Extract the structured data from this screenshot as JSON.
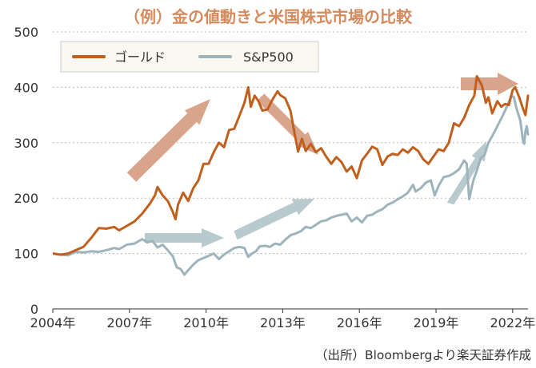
{
  "colors": {
    "gold": "#C0601E",
    "sp500": "#9DB4BC",
    "arrow_orange": "#D9A48C",
    "arrow_blue": "#B9CACE",
    "title": "#D58A5E",
    "axis": "#333333",
    "grid": "#BBBBBB",
    "legend_bg": "#FBF8F2"
  },
  "chart_data": {
    "type": "line",
    "title": "（例）金の値動きと米国株式市場の比較",
    "xlabel": "",
    "ylabel": "",
    "xlim": [
      2004.0,
      2022.6
    ],
    "ylim": [
      0,
      500
    ],
    "x_ticks": [
      2004,
      2007,
      2010,
      2013,
      2016,
      2019,
      2022
    ],
    "x_tick_labels": [
      "2004年",
      "2007年",
      "2010年",
      "2013年",
      "2016年",
      "2019年",
      "2022年"
    ],
    "y_ticks": [
      0,
      100,
      200,
      300,
      400,
      500
    ],
    "grid": true,
    "legend_position": "top-left",
    "source_note": "（出所）Bloombergより楽天証券作成",
    "series": [
      {
        "name": "ゴールド",
        "color": "#C0601E",
        "points": [
          [
            2004.0,
            100
          ],
          [
            2004.3,
            98
          ],
          [
            2004.6,
            100
          ],
          [
            2004.9,
            106
          ],
          [
            2005.2,
            112
          ],
          [
            2005.5,
            128
          ],
          [
            2005.8,
            146
          ],
          [
            2006.1,
            145
          ],
          [
            2006.4,
            148
          ],
          [
            2006.6,
            142
          ],
          [
            2006.9,
            150
          ],
          [
            2007.2,
            158
          ],
          [
            2007.5,
            172
          ],
          [
            2007.8,
            190
          ],
          [
            2008.0,
            205
          ],
          [
            2008.1,
            220
          ],
          [
            2008.3,
            205
          ],
          [
            2008.5,
            195
          ],
          [
            2008.7,
            175
          ],
          [
            2008.8,
            162
          ],
          [
            2008.9,
            188
          ],
          [
            2009.1,
            210
          ],
          [
            2009.3,
            195
          ],
          [
            2009.5,
            218
          ],
          [
            2009.7,
            232
          ],
          [
            2009.9,
            262
          ],
          [
            2010.1,
            262
          ],
          [
            2010.3,
            283
          ],
          [
            2010.5,
            300
          ],
          [
            2010.7,
            292
          ],
          [
            2010.9,
            323
          ],
          [
            2011.1,
            325
          ],
          [
            2011.3,
            348
          ],
          [
            2011.5,
            372
          ],
          [
            2011.65,
            400
          ],
          [
            2011.75,
            365
          ],
          [
            2011.9,
            385
          ],
          [
            2012.05,
            375
          ],
          [
            2012.2,
            358
          ],
          [
            2012.4,
            360
          ],
          [
            2012.6,
            378
          ],
          [
            2012.8,
            393
          ],
          [
            2012.9,
            386
          ],
          [
            2013.1,
            380
          ],
          [
            2013.3,
            358
          ],
          [
            2013.45,
            320
          ],
          [
            2013.6,
            284
          ],
          [
            2013.75,
            307
          ],
          [
            2013.9,
            285
          ],
          [
            2014.1,
            298
          ],
          [
            2014.3,
            283
          ],
          [
            2014.5,
            290
          ],
          [
            2014.7,
            275
          ],
          [
            2014.9,
            262
          ],
          [
            2015.1,
            274
          ],
          [
            2015.3,
            265
          ],
          [
            2015.5,
            248
          ],
          [
            2015.7,
            257
          ],
          [
            2015.9,
            236
          ],
          [
            2016.1,
            268
          ],
          [
            2016.3,
            280
          ],
          [
            2016.5,
            293
          ],
          [
            2016.7,
            288
          ],
          [
            2016.9,
            260
          ],
          [
            2017.1,
            275
          ],
          [
            2017.3,
            280
          ],
          [
            2017.5,
            278
          ],
          [
            2017.7,
            288
          ],
          [
            2017.9,
            282
          ],
          [
            2018.1,
            292
          ],
          [
            2018.3,
            285
          ],
          [
            2018.5,
            270
          ],
          [
            2018.7,
            262
          ],
          [
            2018.9,
            275
          ],
          [
            2019.1,
            288
          ],
          [
            2019.3,
            285
          ],
          [
            2019.5,
            300
          ],
          [
            2019.7,
            335
          ],
          [
            2019.9,
            330
          ],
          [
            2020.1,
            345
          ],
          [
            2020.3,
            368
          ],
          [
            2020.5,
            385
          ],
          [
            2020.6,
            420
          ],
          [
            2020.8,
            403
          ],
          [
            2020.95,
            372
          ],
          [
            2021.05,
            382
          ],
          [
            2021.2,
            353
          ],
          [
            2021.4,
            375
          ],
          [
            2021.55,
            365
          ],
          [
            2021.7,
            370
          ],
          [
            2021.85,
            368
          ],
          [
            2022.0,
            395
          ],
          [
            2022.1,
            400
          ],
          [
            2022.25,
            383
          ],
          [
            2022.4,
            362
          ],
          [
            2022.5,
            350
          ],
          [
            2022.6,
            385
          ]
        ]
      },
      {
        "name": "S&P500",
        "color": "#9DB4BC",
        "points": [
          [
            2004.0,
            100
          ],
          [
            2004.3,
            98
          ],
          [
            2004.6,
            97
          ],
          [
            2004.9,
            103
          ],
          [
            2005.2,
            102
          ],
          [
            2005.5,
            104
          ],
          [
            2005.8,
            103
          ],
          [
            2006.1,
            106
          ],
          [
            2006.4,
            110
          ],
          [
            2006.6,
            108
          ],
          [
            2006.9,
            116
          ],
          [
            2007.2,
            118
          ],
          [
            2007.5,
            126
          ],
          [
            2007.7,
            120
          ],
          [
            2007.9,
            123
          ],
          [
            2008.1,
            111
          ],
          [
            2008.3,
            116
          ],
          [
            2008.5,
            106
          ],
          [
            2008.7,
            95
          ],
          [
            2008.85,
            75
          ],
          [
            2009.0,
            72
          ],
          [
            2009.15,
            62
          ],
          [
            2009.3,
            70
          ],
          [
            2009.5,
            80
          ],
          [
            2009.7,
            88
          ],
          [
            2009.9,
            92
          ],
          [
            2010.1,
            96
          ],
          [
            2010.3,
            100
          ],
          [
            2010.5,
            90
          ],
          [
            2010.7,
            98
          ],
          [
            2010.9,
            104
          ],
          [
            2011.1,
            110
          ],
          [
            2011.3,
            112
          ],
          [
            2011.5,
            110
          ],
          [
            2011.65,
            94
          ],
          [
            2011.8,
            100
          ],
          [
            2011.95,
            104
          ],
          [
            2012.1,
            113
          ],
          [
            2012.3,
            114
          ],
          [
            2012.5,
            112
          ],
          [
            2012.7,
            118
          ],
          [
            2012.9,
            116
          ],
          [
            2013.1,
            125
          ],
          [
            2013.3,
            133
          ],
          [
            2013.5,
            136
          ],
          [
            2013.7,
            140
          ],
          [
            2013.9,
            148
          ],
          [
            2014.1,
            146
          ],
          [
            2014.3,
            152
          ],
          [
            2014.5,
            158
          ],
          [
            2014.7,
            160
          ],
          [
            2014.9,
            165
          ],
          [
            2015.1,
            168
          ],
          [
            2015.3,
            170
          ],
          [
            2015.5,
            172
          ],
          [
            2015.7,
            158
          ],
          [
            2015.9,
            165
          ],
          [
            2016.1,
            156
          ],
          [
            2016.3,
            168
          ],
          [
            2016.5,
            170
          ],
          [
            2016.7,
            176
          ],
          [
            2016.9,
            180
          ],
          [
            2017.1,
            188
          ],
          [
            2017.3,
            192
          ],
          [
            2017.5,
            198
          ],
          [
            2017.7,
            203
          ],
          [
            2017.9,
            210
          ],
          [
            2018.1,
            224
          ],
          [
            2018.2,
            212
          ],
          [
            2018.4,
            218
          ],
          [
            2018.6,
            228
          ],
          [
            2018.8,
            232
          ],
          [
            2018.95,
            205
          ],
          [
            2019.1,
            222
          ],
          [
            2019.3,
            238
          ],
          [
            2019.5,
            240
          ],
          [
            2019.7,
            245
          ],
          [
            2019.9,
            252
          ],
          [
            2020.1,
            268
          ],
          [
            2020.2,
            262
          ],
          [
            2020.3,
            198
          ],
          [
            2020.45,
            230
          ],
          [
            2020.6,
            250
          ],
          [
            2020.75,
            272
          ],
          [
            2020.9,
            278
          ],
          [
            2021.05,
            300
          ],
          [
            2021.2,
            312
          ],
          [
            2021.4,
            330
          ],
          [
            2021.6,
            348
          ],
          [
            2021.8,
            368
          ],
          [
            2021.95,
            385
          ],
          [
            2022.05,
            382
          ],
          [
            2022.15,
            362
          ],
          [
            2022.3,
            340
          ],
          [
            2022.4,
            305
          ],
          [
            2022.45,
            298
          ],
          [
            2022.5,
            320
          ],
          [
            2022.55,
            330
          ],
          [
            2022.6,
            315
          ]
        ]
      }
    ]
  }
}
